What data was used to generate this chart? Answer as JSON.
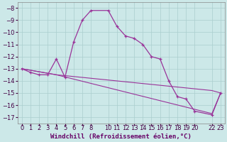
{
  "xlabel": "Windchill (Refroidissement éolien,°C)",
  "background_color": "#cce8e8",
  "grid_color": "#aacece",
  "line_color": "#993399",
  "xlim": [
    -0.5,
    23.5
  ],
  "ylim": [
    -17.5,
    -7.5
  ],
  "yticks": [
    -17,
    -16,
    -15,
    -14,
    -13,
    -12,
    -11,
    -10,
    -9,
    -8
  ],
  "xtick_positions": [
    0,
    1,
    2,
    3,
    4,
    5,
    6,
    7,
    8,
    10,
    11,
    12,
    13,
    14,
    15,
    16,
    17,
    18,
    19,
    20,
    22,
    23
  ],
  "xtick_labels": [
    "0",
    "1",
    "2",
    "3",
    "4",
    "5",
    "6",
    "7",
    "8",
    "10",
    "11",
    "12",
    "13",
    "14",
    "15",
    "16",
    "17",
    "18",
    "19",
    "20",
    "22",
    "23"
  ],
  "curve1_x": [
    0,
    1,
    2,
    3,
    4,
    5,
    6,
    7,
    8,
    10,
    11,
    12,
    13,
    14,
    15,
    16,
    17,
    18,
    19,
    20,
    22,
    23
  ],
  "curve1_y": [
    -13.0,
    -13.3,
    -13.5,
    -13.5,
    -12.2,
    -13.7,
    -10.8,
    -9.0,
    -8.2,
    -8.2,
    -9.5,
    -10.3,
    -10.5,
    -11.0,
    -12.0,
    -12.2,
    -14.0,
    -15.3,
    -15.5,
    -16.5,
    -16.8,
    -15.0
  ],
  "curve2_x": [
    0,
    4,
    22,
    23
  ],
  "curve2_y": [
    -13.0,
    -13.5,
    -14.8,
    -15.0
  ],
  "curve3_x": [
    0,
    4,
    22,
    23
  ],
  "curve3_y": [
    -13.0,
    -13.5,
    -16.7,
    -15.0
  ],
  "fontsize_xlabel": 6.5,
  "fontsize_ticks": 6.0
}
